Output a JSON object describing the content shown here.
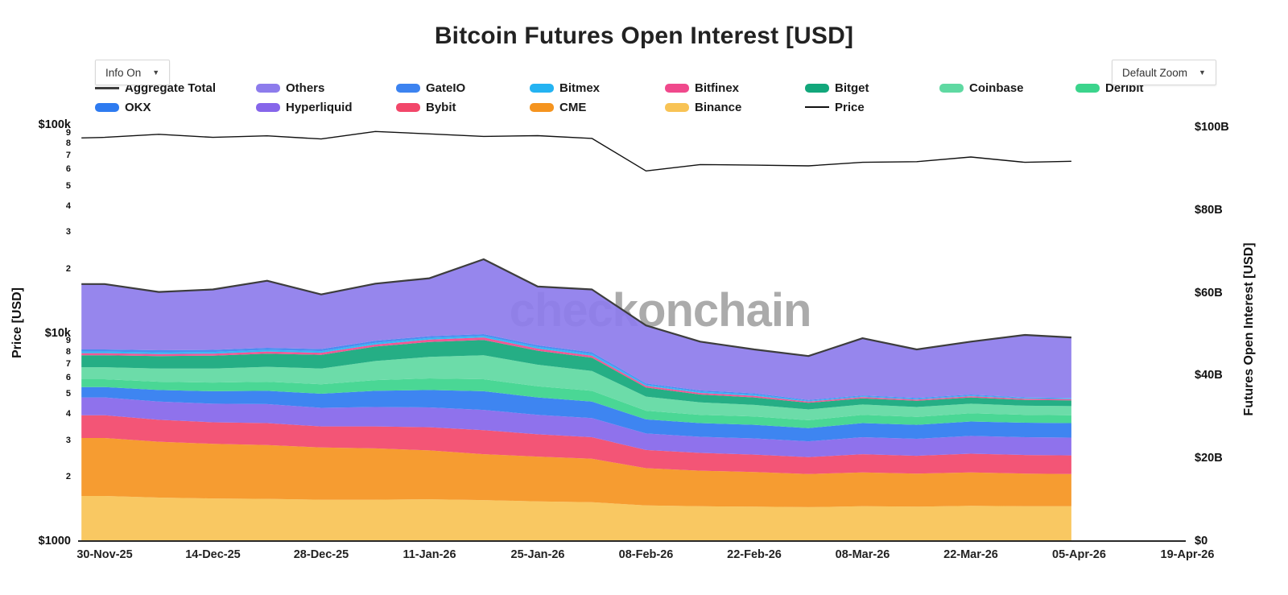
{
  "title": "Bitcoin Futures Open Interest [USD]",
  "controls": {
    "info_toggle": "Info On",
    "zoom_select": "Default Zoom",
    "caret": "▼"
  },
  "watermark": "checkonchain",
  "left_axis": {
    "title": "Price [USD]",
    "ticks": [
      {
        "label": "$100k",
        "value": 100000
      },
      {
        "label": "9",
        "value": 90000
      },
      {
        "label": "8",
        "value": 80000
      },
      {
        "label": "7",
        "value": 70000
      },
      {
        "label": "6",
        "value": 60000
      },
      {
        "label": "5",
        "value": 50000
      },
      {
        "label": "4",
        "value": 40000
      },
      {
        "label": "3",
        "value": 30000
      },
      {
        "label": "2",
        "value": 20000
      },
      {
        "label": "$10k",
        "value": 10000
      },
      {
        "label": "9",
        "value": 9000
      },
      {
        "label": "8",
        "value": 8000
      },
      {
        "label": "7",
        "value": 7000
      },
      {
        "label": "6",
        "value": 6000
      },
      {
        "label": "5",
        "value": 5000
      },
      {
        "label": "4",
        "value": 4000
      },
      {
        "label": "3",
        "value": 3000
      },
      {
        "label": "2",
        "value": 2000
      },
      {
        "label": "$1000",
        "value": 1000
      }
    ]
  },
  "right_axis": {
    "title": "Futures Open Interest [USD]",
    "ticks": [
      {
        "label": "$100B",
        "value": 100
      },
      {
        "label": "$80B",
        "value": 80
      },
      {
        "label": "$60B",
        "value": 60
      },
      {
        "label": "$40B",
        "value": 40
      },
      {
        "label": "$20B",
        "value": 20
      },
      {
        "label": "$0",
        "value": 0
      }
    ]
  },
  "x_axis": {
    "ticks": [
      "30-Nov-25",
      "14-Dec-25",
      "28-Dec-25",
      "11-Jan-26",
      "25-Jan-26",
      "08-Feb-26",
      "22-Feb-26",
      "08-Mar-26",
      "22-Mar-26",
      "05-Apr-26",
      "19-Apr-26"
    ]
  },
  "legend": {
    "rows": [
      [
        {
          "label": "Aggregate Total",
          "color": "#3d3d3d",
          "swatch": "line"
        },
        {
          "label": "Others",
          "color": "#8d7cec",
          "swatch": "bar"
        },
        {
          "label": "GateIO",
          "color": "#3c83f0",
          "swatch": "bar"
        },
        {
          "label": "Bitmex",
          "color": "#24b3f2",
          "swatch": "bar"
        },
        {
          "label": "Bitfinex",
          "color": "#f0498c",
          "swatch": "bar"
        },
        {
          "label": "Bitget",
          "color": "#12a77b",
          "swatch": "bar"
        },
        {
          "label": "Coinbase",
          "color": "#5fd9a2",
          "swatch": "bar"
        },
        {
          "label": "Deribit",
          "color": "#3bd48c",
          "swatch": "bar"
        }
      ],
      [
        {
          "label": "OKX",
          "color": "#2e7bf0",
          "swatch": "bar"
        },
        {
          "label": "Hyperliquid",
          "color": "#8666ea",
          "swatch": "bar"
        },
        {
          "label": "Bybit",
          "color": "#f2476a",
          "swatch": "bar"
        },
        {
          "label": "CME",
          "color": "#f5941f",
          "swatch": "bar"
        },
        {
          "label": "Binance",
          "color": "#f8c355",
          "swatch": "bar"
        },
        {
          "label": "Price",
          "color": "#111111",
          "swatch": "thin"
        }
      ]
    ]
  },
  "chart_data": {
    "type": "area",
    "stacked": true,
    "grid": false,
    "legend_position": "top",
    "y_right_label": "Futures Open Interest [USD]",
    "y_right_range_billions": [
      0,
      100
    ],
    "y_left_label": "Price [USD]",
    "y_left_scale": "log",
    "y_left_range_usd": [
      1000,
      100000
    ],
    "x": [
      "27-Nov-25",
      "30-Nov-25",
      "07-Dec-25",
      "14-Dec-25",
      "21-Dec-25",
      "28-Dec-25",
      "04-Jan-26",
      "11-Jan-26",
      "18-Jan-26",
      "25-Jan-26",
      "01-Feb-26",
      "08-Feb-26",
      "15-Feb-26",
      "22-Feb-26",
      "01-Mar-26",
      "08-Mar-26",
      "15-Mar-26",
      "22-Mar-26",
      "29-Mar-26",
      "04-Apr-26"
    ],
    "units": "billions USD",
    "series": [
      {
        "name": "Binance",
        "color": "#f8c355",
        "values": [
          10.9,
          10.9,
          10.5,
          10.3,
          10.2,
          10.0,
          10.0,
          10.1,
          9.9,
          9.6,
          9.4,
          8.6,
          8.4,
          8.3,
          8.2,
          8.4,
          8.3,
          8.5,
          8.4,
          8.4
        ]
      },
      {
        "name": "CME",
        "color": "#f5941f",
        "values": [
          14.0,
          14.0,
          13.5,
          13.2,
          13.0,
          12.6,
          12.4,
          11.8,
          11.1,
          10.8,
          10.5,
          9.0,
          8.6,
          8.4,
          8.0,
          8.2,
          8.0,
          8.1,
          7.9,
          7.8
        ]
      },
      {
        "name": "Bybit",
        "color": "#f2476a",
        "values": [
          5.5,
          5.5,
          5.3,
          5.2,
          5.3,
          5.1,
          5.3,
          5.6,
          5.8,
          5.4,
          5.2,
          4.4,
          4.3,
          4.2,
          4.1,
          4.4,
          4.3,
          4.5,
          4.5,
          4.5
        ]
      },
      {
        "name": "Hyperliquid",
        "color": "#8666ea",
        "values": [
          4.3,
          4.3,
          4.4,
          4.5,
          4.6,
          4.5,
          4.7,
          4.8,
          4.9,
          4.7,
          4.6,
          4.0,
          3.9,
          3.9,
          3.8,
          4.1,
          4.1,
          4.3,
          4.3,
          4.3
        ]
      },
      {
        "name": "OKX",
        "color": "#2e7bf0",
        "values": [
          2.5,
          2.5,
          2.8,
          3.0,
          3.2,
          3.4,
          3.9,
          4.2,
          4.5,
          4.2,
          4.0,
          3.4,
          3.3,
          3.3,
          3.2,
          3.4,
          3.4,
          3.5,
          3.5,
          3.5
        ]
      },
      {
        "name": "Deribit",
        "color": "#3bd48c",
        "values": [
          1.9,
          1.9,
          2.0,
          2.1,
          2.2,
          2.3,
          2.6,
          2.8,
          2.9,
          2.7,
          2.6,
          2.1,
          2.0,
          2.0,
          1.9,
          2.0,
          1.9,
          2.0,
          1.9,
          1.9
        ]
      },
      {
        "name": "Coinbase",
        "color": "#5fd9a2",
        "values": [
          2.9,
          2.9,
          3.2,
          3.4,
          3.6,
          3.8,
          4.6,
          5.2,
          5.8,
          5.2,
          4.8,
          3.4,
          3.0,
          2.8,
          2.6,
          2.5,
          2.4,
          2.3,
          2.2,
          2.2
        ]
      },
      {
        "name": "Bitget",
        "color": "#12a77b",
        "values": [
          2.9,
          2.9,
          3.0,
          3.1,
          3.2,
          3.3,
          3.5,
          3.6,
          3.7,
          3.4,
          3.2,
          2.2,
          1.9,
          1.8,
          1.6,
          1.5,
          1.5,
          1.5,
          1.4,
          1.4
        ]
      },
      {
        "name": "Bitfinex",
        "color": "#f0498c",
        "values": [
          0.5,
          0.5,
          0.5,
          0.5,
          0.5,
          0.5,
          0.5,
          0.6,
          0.6,
          0.5,
          0.5,
          0.4,
          0.4,
          0.4,
          0.3,
          0.3,
          0.3,
          0.3,
          0.3,
          0.3
        ]
      },
      {
        "name": "Bitmex",
        "color": "#24b3f2",
        "values": [
          0.4,
          0.4,
          0.4,
          0.4,
          0.4,
          0.4,
          0.4,
          0.4,
          0.4,
          0.4,
          0.4,
          0.3,
          0.3,
          0.3,
          0.2,
          0.2,
          0.2,
          0.2,
          0.2,
          0.2
        ]
      },
      {
        "name": "GateIO",
        "color": "#3c83f0",
        "values": [
          0.5,
          0.5,
          0.5,
          0.5,
          0.5,
          0.5,
          0.5,
          0.4,
          0.4,
          0.4,
          0.4,
          0.3,
          0.3,
          0.3,
          0.2,
          0.2,
          0.2,
          0.2,
          0.1,
          0.1
        ]
      },
      {
        "name": "Others",
        "color": "#8d7cec",
        "values": [
          15.8,
          15.8,
          14.1,
          14.6,
          16.2,
          13.2,
          13.8,
          14.0,
          18.1,
          14.2,
          15.2,
          14.0,
          11.8,
          10.6,
          10.6,
          13.8,
          11.7,
          12.8,
          15.1,
          14.6
        ]
      }
    ],
    "aggregate_total": {
      "name": "Aggregate Total",
      "color": "#3d3d3d",
      "values": [
        62.1,
        62.1,
        60.2,
        60.8,
        62.9,
        59.6,
        62.2,
        63.5,
        68.1,
        61.5,
        60.8,
        52.1,
        48.2,
        46.3,
        44.7,
        49.0,
        46.3,
        48.2,
        49.8,
        49.2
      ]
    },
    "price_line": {
      "name": "Price",
      "color": "#111111",
      "axis": "left-log",
      "values_usd": [
        86500,
        87000,
        90000,
        87000,
        88500,
        85500,
        92900,
        90400,
        88000,
        88700,
        86000,
        60000,
        64400,
        64000,
        63500,
        66000,
        66500,
        70000,
        66000,
        66800
      ]
    }
  }
}
